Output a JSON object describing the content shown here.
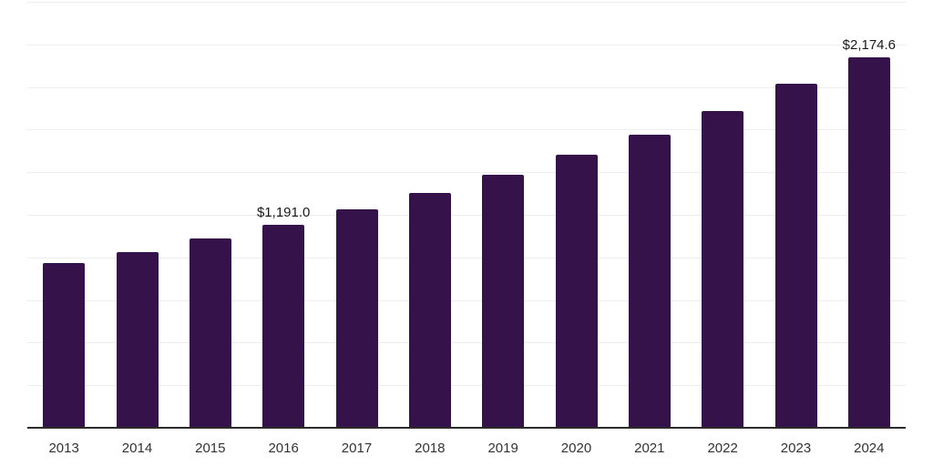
{
  "chart_data": {
    "type": "bar",
    "title": "",
    "xlabel": "",
    "ylabel": "",
    "categories": [
      "2013",
      "2014",
      "2015",
      "2016",
      "2017",
      "2018",
      "2019",
      "2020",
      "2021",
      "2022",
      "2023",
      "2024"
    ],
    "values": [
      969,
      1032,
      1111,
      1191.0,
      1283,
      1379,
      1484,
      1600,
      1722,
      1861,
      2017,
      2174.6
    ],
    "data_labels": [
      "",
      "",
      "",
      "$1,191.0",
      "",
      "",
      "",
      "",
      "",
      "",
      "",
      "$2,174.6"
    ],
    "ylim": [
      0,
      2500
    ],
    "grid_interval": 250,
    "grid": "horizontal",
    "y_tick_labels_visible": false,
    "legend": "none",
    "colors": {
      "bar": "#35124a",
      "grid_line": "#ededed",
      "axis_line": "#2b2b2b",
      "data_label": "#1a1a1a",
      "tick_label": "#333333",
      "background": "#ffffff"
    }
  }
}
